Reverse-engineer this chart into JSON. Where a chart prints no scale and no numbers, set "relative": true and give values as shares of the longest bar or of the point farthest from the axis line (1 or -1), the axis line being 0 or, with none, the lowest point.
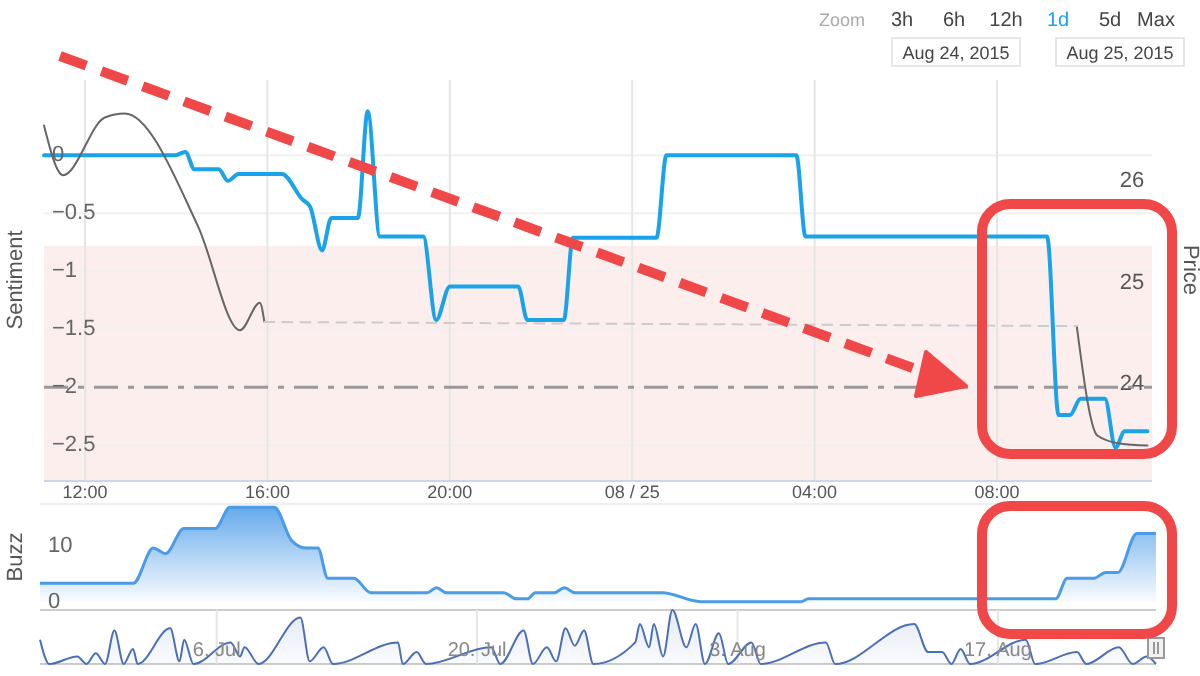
{
  "chart_data": [
    {
      "type": "line",
      "ylabel": "Sentiment",
      "y2label": "Price",
      "xlim": [
        "2015-08-24T11:06",
        "2015-08-25T11:24"
      ],
      "xticks": [
        {
          "value": "2015-08-24T12:00",
          "label": "12:00"
        },
        {
          "value": "2015-08-24T16:00",
          "label": "16:00"
        },
        {
          "value": "2015-08-24T20:00",
          "label": "20:00"
        },
        {
          "value": "2015-08-25T00:00",
          "label": "08 / 25"
        },
        {
          "value": "2015-08-25T04:00",
          "label": "04:00"
        },
        {
          "value": "2015-08-25T08:00",
          "label": "08:00"
        }
      ],
      "ylim": [
        -2.8,
        0.65
      ],
      "yticks": [
        0,
        -0.5,
        -1,
        -1.5,
        -2,
        -2.5
      ],
      "y2lim": [
        23.05,
        27
      ],
      "y2ticks": [
        24,
        25,
        26
      ],
      "grid": true,
      "bands": [
        {
          "axis": "y",
          "from": -2.8,
          "to": -0.78,
          "color": "#fdeeee"
        }
      ],
      "ref_lines": [
        {
          "axis": "y",
          "value": -2,
          "color": "#999999",
          "line_style": "dashed"
        }
      ],
      "series": [
        {
          "color": "#1aa3e8",
          "x": [
            "2015-08-24T11:06",
            "2015-08-24T13:58",
            "2015-08-24T14:12",
            "2015-08-24T14:24",
            "2015-08-24T14:56",
            "2015-08-24T15:08",
            "2015-08-24T15:22",
            "2015-08-24T16:19",
            "2015-08-24T16:46",
            "2015-08-24T16:56",
            "2015-08-24T17:12",
            "2015-08-24T17:24",
            "2015-08-24T17:59",
            "2015-08-24T18:12",
            "2015-08-24T18:28",
            "2015-08-24T19:25",
            "2015-08-24T19:42",
            "2015-08-24T20:00",
            "2015-08-24T21:30",
            "2015-08-24T21:42",
            "2015-08-24T22:30",
            "2015-08-24T22:42",
            "2015-08-25T00:32",
            "2015-08-25T00:45",
            "2015-08-25T03:36",
            "2015-08-25T03:48",
            "2015-08-25T09:06",
            "2015-08-25T09:21",
            "2015-08-25T09:36",
            "2015-08-25T09:50",
            "2015-08-25T10:22",
            "2015-08-25T10:36",
            "2015-08-25T10:48",
            "2015-08-25T11:18"
          ],
          "values": [
            0,
            0,
            0.03,
            -0.12,
            -0.12,
            -0.22,
            -0.16,
            -0.16,
            -0.38,
            -0.44,
            -0.82,
            -0.54,
            -0.54,
            0.38,
            -0.7,
            -0.7,
            -1.42,
            -1.13,
            -1.13,
            -1.42,
            -1.42,
            -0.71,
            -0.71,
            0,
            0,
            -0.7,
            -0.7,
            -2.24,
            -2.24,
            -2.1,
            -2.1,
            -2.52,
            -2.38,
            -2.38
          ]
        },
        {
          "color": "#666666",
          "axis": "y2",
          "x": [
            "2015-08-24T11:06",
            "2015-08-24T11:31",
            "2015-08-24T12:26",
            "2015-08-24T12:52",
            "2015-08-24T14:29",
            "2015-08-24T15:24",
            "2015-08-24T15:50",
            "2015-08-24T15:56",
            "2015-08-25T00:00",
            "2015-08-25T09:45",
            "2015-08-25T10:12",
            "2015-08-25T10:42",
            "2015-08-25T11:18"
          ],
          "values": [
            26.55,
            26.06,
            26.63,
            26.67,
            25.55,
            24.53,
            24.8,
            24.61,
            null,
            24.57,
            23.49,
            23.41,
            23.39
          ]
        },
        {
          "color": "#cccccc",
          "axis": "y2",
          "line_style": "dashed",
          "x": [
            "2015-08-24T15:56",
            "2015-08-25T09:45"
          ],
          "values": [
            24.61,
            24.57
          ]
        }
      ],
      "annotations": [
        "Zoom",
        "3h",
        "6h",
        "12h",
        "1d",
        "5d",
        "Max",
        "Aug 24, 2015",
        "Aug 25, 2015"
      ]
    },
    {
      "type": "area",
      "ylabel": "Buzz",
      "xlim": [
        "2015-08-24T11:06",
        "2015-08-25T11:24"
      ],
      "ylim": [
        -1.5,
        17.5
      ],
      "yticks": [
        0,
        10
      ],
      "tick_labels": "y",
      "color": "#4a9be8",
      "x": [
        "2015-08-24T11:06",
        "2015-08-24T13:08",
        "2015-08-24T13:34",
        "2015-08-24T13:50",
        "2015-08-24T14:14",
        "2015-08-24T14:55",
        "2015-08-24T15:14",
        "2015-08-24T16:12",
        "2015-08-24T16:35",
        "2015-08-24T16:54",
        "2015-08-24T17:09",
        "2015-08-24T17:22",
        "2015-08-24T17:56",
        "2015-08-24T18:18",
        "2015-08-24T19:32",
        "2015-08-24T19:44",
        "2015-08-24T19:57",
        "2015-08-24T21:12",
        "2015-08-24T21:28",
        "2015-08-24T21:43",
        "2015-08-24T21:53",
        "2015-08-24T22:18",
        "2015-08-24T22:31",
        "2015-08-24T22:45",
        "2015-08-25T00:39",
        "2015-08-25T01:29",
        "2015-08-25T03:40",
        "2015-08-25T03:50",
        "2015-08-25T09:13",
        "2015-08-25T09:28",
        "2015-08-25T10:03",
        "2015-08-25T10:18",
        "2015-08-25T10:34",
        "2015-08-25T10:59",
        "2015-08-25T11:24"
      ],
      "values": [
        3.3,
        3.3,
        9.6,
        8.6,
        13.1,
        13.1,
        16.9,
        16.9,
        10.9,
        9.6,
        9.6,
        4.2,
        4.2,
        1.6,
        1.6,
        2.5,
        1.6,
        1.6,
        0.5,
        0.5,
        1.6,
        1.6,
        2.5,
        1.6,
        1.6,
        0,
        0,
        0.5,
        0.5,
        4.2,
        4.2,
        5.2,
        5.2,
        12.2,
        12.2
      ]
    },
    {
      "type": "area",
      "relative": true,
      "color": "#4a6fb8",
      "grid": "x",
      "tick_labels": "x",
      "xlim": [
        "2015-06-26T12:00",
        "2015-08-25T12:00"
      ],
      "xticks": [
        {
          "value": "2015-07-06T00:00",
          "label": "6. Jul"
        },
        {
          "value": "2015-07-20T00:00",
          "label": "20. Jul"
        },
        {
          "value": "2015-08-03T00:00",
          "label": "3. Aug"
        },
        {
          "value": "2015-08-17T00:00",
          "label": "17. Aug"
        }
      ],
      "x": [
        "2015-06-26T12:00",
        "2015-06-27T00:00",
        "2015-06-28T12:00",
        "2015-06-29T00:00",
        "2015-06-29T12:00",
        "2015-06-30T00:00",
        "2015-06-30T12:00",
        "2015-07-01T00:00",
        "2015-07-01T12:00",
        "2015-07-01T18:00",
        "2015-07-03T12:00",
        "2015-07-04T00:00",
        "2015-07-04T06:00",
        "2015-07-04T18:00",
        "2015-07-06T18:00",
        "2015-07-07T06:00",
        "2015-07-07T12:00",
        "2015-07-08T06:00",
        "2015-07-10T12:00",
        "2015-07-11T00:00",
        "2015-07-11T18:00",
        "2015-07-12T06:00",
        "2015-07-15T18:00",
        "2015-07-16T00:00",
        "2015-07-16T18:00",
        "2015-07-17T06:00",
        "2015-07-20T18:00",
        "2015-07-21T06:00",
        "2015-07-22T12:00",
        "2015-07-23T00:00",
        "2015-07-23T18:00",
        "2015-07-24T06:00",
        "2015-07-24T18:00",
        "2015-07-25T06:00",
        "2015-07-25T18:00",
        "2015-07-26T06:00",
        "2015-07-28T12:00",
        "2015-07-28T18:00",
        "2015-07-29T06:00",
        "2015-07-29T12:00",
        "2015-07-30T00:00",
        "2015-07-30T12:00",
        "2015-07-31T06:00",
        "2015-07-31T18:00",
        "2015-08-01T06:00",
        "2015-08-02T00:00",
        "2015-08-02T12:00",
        "2015-08-03T18:00",
        "2015-08-04T06:00",
        "2015-08-07T18:00",
        "2015-08-08T06:00",
        "2015-08-12T12:00",
        "2015-08-13T06:00",
        "2015-08-14T00:00",
        "2015-08-14T12:00",
        "2015-08-15T00:00",
        "2015-08-15T12:00",
        "2015-08-18T12:00",
        "2015-08-19T00:00",
        "2015-08-21T06:00",
        "2015-08-21T18:00",
        "2015-08-23T12:00",
        "2015-08-24T06:00",
        "2015-08-25T00:00",
        "2015-08-25T12:00"
      ],
      "values": [
        0.45,
        0,
        0.14,
        0,
        0.2,
        0,
        0.62,
        0,
        0.28,
        0,
        0.66,
        0.05,
        0.45,
        0,
        0.4,
        0.14,
        0.31,
        0,
        0.86,
        0.05,
        0.31,
        0,
        0.4,
        0,
        0.22,
        0,
        0.31,
        0,
        0.62,
        0,
        0.31,
        0.05,
        0.66,
        0.34,
        0.62,
        0,
        0.4,
        0.74,
        0.31,
        0.74,
        0.14,
        1,
        0.31,
        0.74,
        0,
        0.57,
        0,
        0.4,
        0,
        0.4,
        0,
        0.74,
        0.22,
        0.22,
        0,
        0.28,
        0,
        0.45,
        0,
        0.22,
        0,
        0.31,
        0,
        0.14,
        0
      ]
    }
  ]
}
